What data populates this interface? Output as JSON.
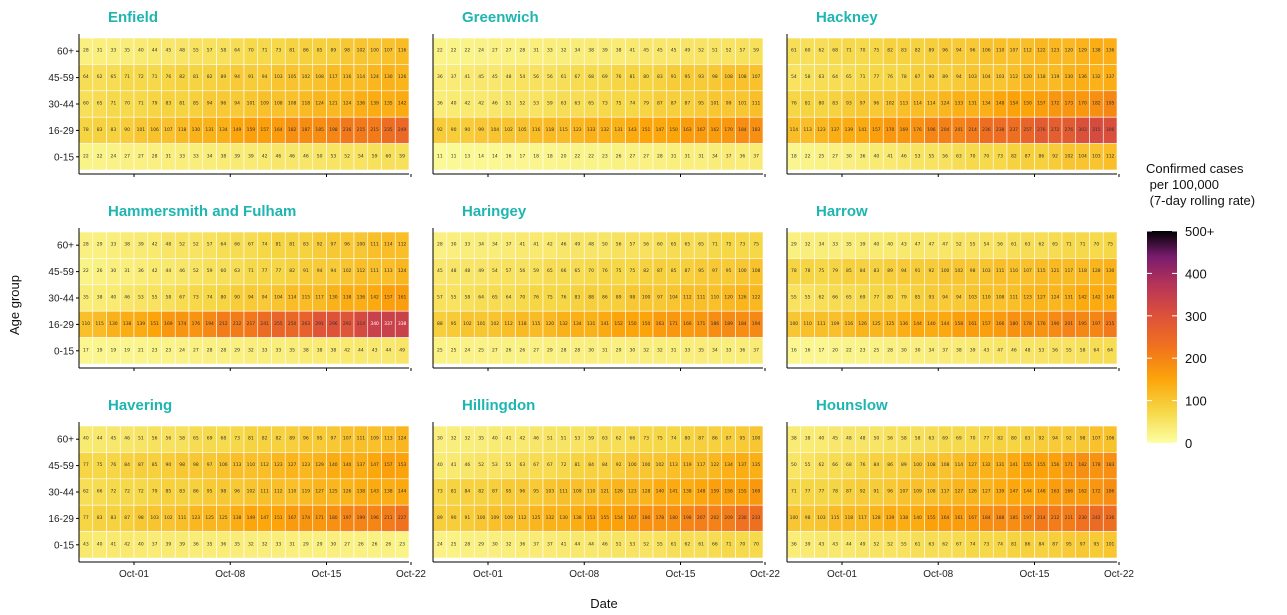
{
  "chart_data": {
    "type": "heatmap",
    "xlabel": "Date",
    "ylabel": "Age group",
    "age_groups": [
      "60+",
      "45-59",
      "30-44",
      "16-29",
      "0-15"
    ],
    "x_ticks": [
      "Oct-01",
      "Oct-08",
      "Oct-15",
      "Oct-22"
    ],
    "n_days": 24,
    "legend": {
      "title": [
        "Confirmed cases",
        " per 100,000",
        " (7-day rolling rate)"
      ],
      "ticks": [
        "500+",
        "400",
        "300",
        "200",
        "100",
        "0"
      ],
      "range": [
        0,
        500
      ],
      "colormap": "inferno (reversed)"
    },
    "panels": [
      {
        "name": "Enfield",
        "start": [
          28,
          62,
          63,
          76,
          22
        ],
        "end": [
          112,
          129,
          144,
          240,
          61
        ]
      },
      {
        "name": "Greenwich",
        "start": [
          21,
          36,
          37,
          88,
          11
        ],
        "end": [
          57,
          111,
          108,
          182,
          38
        ]
      },
      {
        "name": "Hackney",
        "start": [
          59,
          56,
          75,
          112,
          19
        ],
        "end": [
          137,
          140,
          188,
          316,
          112
        ]
      },
      {
        "name": "Hammersmith and Fulham",
        "start": [
          28,
          23,
          34,
          112,
          17
        ],
        "end": [
          116,
          122,
          158,
          351,
          47
        ]
      },
      {
        "name": "Haringey",
        "start": [
          29,
          45,
          55,
          92,
          24
        ],
        "end": [
          77,
          104,
          125,
          196,
          36
        ]
      },
      {
        "name": "Harrow",
        "start": [
          30,
          75,
          55,
          103,
          15
        ],
        "end": [
          75,
          127,
          146,
          209,
          64
        ]
      },
      {
        "name": "Havering",
        "start": [
          40,
          74,
          64,
          76,
          42
        ],
        "end": [
          120,
          155,
          147,
          218,
          24
        ]
      },
      {
        "name": "Hillingdon",
        "start": [
          29,
          40,
          76,
          86,
          24
        ],
        "end": [
          97,
          140,
          166,
          229,
          73
        ]
      },
      {
        "name": "Hounslow",
        "start": [
          37,
          52,
          71,
          97,
          37
        ],
        "end": [
          106,
          189,
          179,
          241,
          102
        ]
      }
    ]
  }
}
